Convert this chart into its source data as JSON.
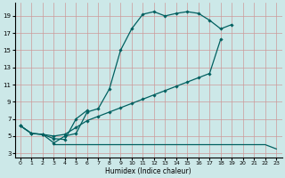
{
  "xlabel": "Humidex (Indice chaleur)",
  "bg_color": "#cce8e8",
  "grid_color": "#cc9999",
  "line_color": "#006060",
  "xlim": [
    -0.5,
    23.5
  ],
  "ylim": [
    2.5,
    20.5
  ],
  "xticks": [
    0,
    1,
    2,
    3,
    4,
    5,
    6,
    7,
    8,
    9,
    10,
    11,
    12,
    13,
    14,
    15,
    16,
    17,
    18,
    19,
    20,
    21,
    22,
    23
  ],
  "yticks": [
    3,
    5,
    7,
    9,
    11,
    13,
    15,
    17,
    19
  ],
  "line1_x": [
    0,
    1,
    2,
    3,
    4,
    5,
    6,
    7,
    8,
    9,
    10,
    11,
    12,
    13,
    14,
    15,
    16,
    17,
    18,
    19
  ],
  "line1_y": [
    6.2,
    5.3,
    5.2,
    4.2,
    5.0,
    5.3,
    7.8,
    8.2,
    10.5,
    15.0,
    17.5,
    19.2,
    19.5,
    19.0,
    19.3,
    19.5,
    19.3,
    18.5,
    17.5,
    18.0
  ],
  "line2_x": [
    0,
    1,
    2,
    3,
    4,
    5,
    6,
    7,
    8,
    9,
    10,
    11,
    12,
    13,
    14,
    15,
    16,
    17,
    18
  ],
  "line2_y": [
    6.2,
    5.3,
    5.2,
    5.0,
    5.2,
    6.0,
    6.8,
    7.3,
    7.8,
    8.3,
    8.8,
    9.3,
    9.8,
    10.3,
    10.8,
    11.3,
    11.8,
    12.3,
    16.3
  ],
  "line3_x": [
    0,
    1,
    2,
    3,
    4,
    5,
    6,
    7,
    8,
    9,
    10,
    11,
    12,
    13,
    14,
    15,
    16,
    17,
    18,
    19,
    20,
    21
  ],
  "line3_y": [
    6.2,
    5.3,
    5.2,
    4.7,
    4.6,
    7.0,
    8.0,
    null,
    null,
    null,
    null,
    null,
    null,
    null,
    null,
    null,
    null,
    null,
    null,
    null,
    null,
    null
  ],
  "line4_x": [
    3,
    4,
    5,
    6,
    7,
    8,
    9,
    10,
    11,
    12,
    13,
    14,
    15,
    16,
    17,
    18,
    19,
    20,
    21,
    22,
    23
  ],
  "line4_y": [
    4.0,
    4.0,
    4.0,
    4.0,
    4.0,
    4.0,
    4.0,
    4.0,
    4.0,
    4.0,
    4.0,
    4.0,
    4.0,
    4.0,
    4.0,
    4.0,
    4.0,
    4.0,
    4.0,
    4.0,
    3.5
  ]
}
